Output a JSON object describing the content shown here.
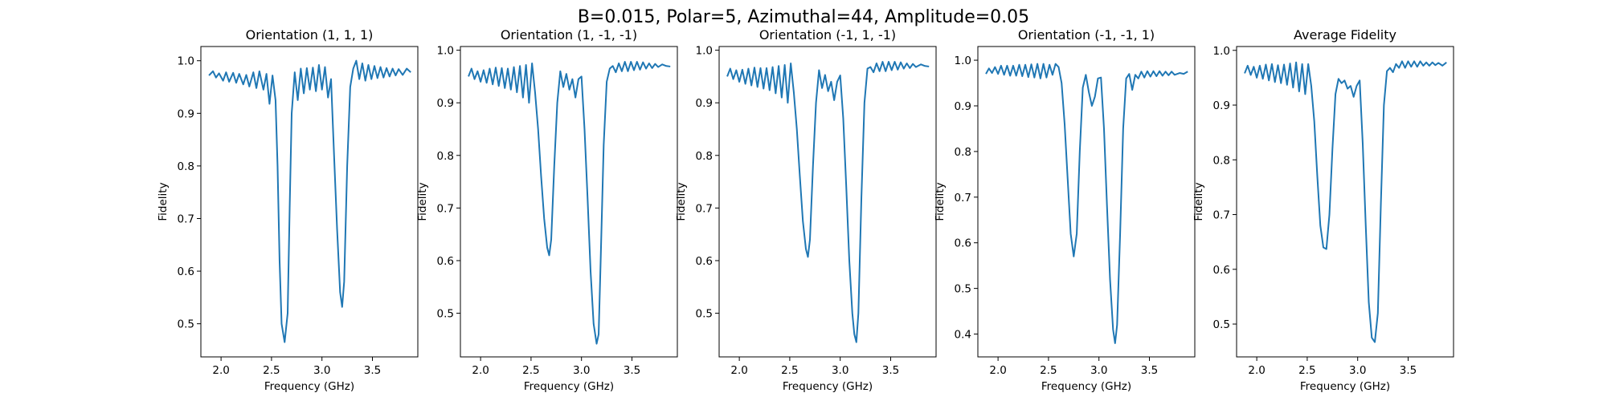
{
  "figure": {
    "suptitle": "B=0.015, Polar=5, Azimuthal=44, Amplitude=0.05"
  },
  "chart_data": [
    {
      "type": "line",
      "title": "Orientation (1, 1, 1)",
      "xlabel": "Frequency (GHz)",
      "ylabel": "Fidelity",
      "xlim": [
        1.8,
        3.95
      ],
      "ylim": [
        0.437,
        1.027
      ],
      "xticks": [
        2.0,
        2.5,
        3.0,
        3.5
      ],
      "yticks": [
        0.5,
        0.6,
        0.7,
        0.8,
        0.9,
        1.0
      ],
      "xtick_labels": [
        "2.0",
        "2.5",
        "3.0",
        "3.5"
      ],
      "ytick_labels": [
        "0.5",
        "0.6",
        "0.7",
        "0.8",
        "0.9",
        "1.0"
      ],
      "grid": false,
      "color": "#1f77b4",
      "dips": [
        {
          "center": 2.63,
          "min": 0.465
        },
        {
          "center": 3.2,
          "min": 0.532
        }
      ],
      "series": [
        {
          "x": [
            1.88,
            1.92,
            1.95,
            1.98,
            2.02,
            2.05,
            2.08,
            2.12,
            2.15,
            2.18,
            2.22,
            2.25,
            2.28,
            2.32,
            2.35,
            2.38,
            2.42,
            2.45,
            2.48,
            2.51,
            2.54,
            2.56,
            2.58,
            2.6,
            2.63,
            2.66,
            2.68,
            2.7,
            2.73,
            2.76,
            2.79,
            2.82,
            2.85,
            2.88,
            2.91,
            2.94,
            2.97,
            3.0,
            3.03,
            3.06,
            3.09,
            3.12,
            3.15,
            3.18,
            3.2,
            3.22,
            3.25,
            3.28,
            3.31,
            3.34,
            3.37,
            3.4,
            3.43,
            3.46,
            3.49,
            3.52,
            3.55,
            3.58,
            3.61,
            3.64,
            3.67,
            3.7,
            3.73,
            3.76,
            3.8,
            3.84,
            3.88
          ],
          "y": [
            0.972,
            0.98,
            0.968,
            0.976,
            0.962,
            0.978,
            0.96,
            0.977,
            0.958,
            0.975,
            0.955,
            0.973,
            0.951,
            0.978,
            0.948,
            0.98,
            0.945,
            0.975,
            0.918,
            0.972,
            0.925,
            0.8,
            0.62,
            0.5,
            0.465,
            0.52,
            0.72,
            0.9,
            0.978,
            0.925,
            0.985,
            0.938,
            0.986,
            0.945,
            0.987,
            0.942,
            0.992,
            0.945,
            0.988,
            0.93,
            0.965,
            0.82,
            0.68,
            0.56,
            0.532,
            0.58,
            0.8,
            0.95,
            0.985,
            1.0,
            0.965,
            0.995,
            0.962,
            0.992,
            0.965,
            0.99,
            0.967,
            0.988,
            0.968,
            0.986,
            0.97,
            0.985,
            0.972,
            0.984,
            0.973,
            0.985,
            0.978
          ]
        }
      ]
    },
    {
      "type": "line",
      "title": "Orientation (1, -1, -1)",
      "xlabel": "Frequency (GHz)",
      "ylabel": "Fidelity",
      "xlim": [
        1.8,
        3.95
      ],
      "ylim": [
        0.417,
        1.007
      ],
      "xticks": [
        2.0,
        2.5,
        3.0,
        3.5
      ],
      "yticks": [
        0.5,
        0.6,
        0.7,
        0.8,
        0.9,
        1.0
      ],
      "xtick_labels": [
        "2.0",
        "2.5",
        "3.0",
        "3.5"
      ],
      "ytick_labels": [
        "0.5",
        "0.6",
        "0.7",
        "0.8",
        "0.9",
        "1.0"
      ],
      "grid": false,
      "color": "#1f77b4",
      "dips": [
        {
          "center": 2.68,
          "min": 0.61
        },
        {
          "center": 3.17,
          "min": 0.442
        }
      ],
      "series": [
        {
          "x": [
            1.88,
            1.91,
            1.94,
            1.97,
            2.0,
            2.03,
            2.06,
            2.09,
            2.12,
            2.15,
            2.18,
            2.21,
            2.24,
            2.27,
            2.3,
            2.33,
            2.36,
            2.39,
            2.42,
            2.45,
            2.48,
            2.51,
            2.54,
            2.57,
            2.6,
            2.63,
            2.66,
            2.68,
            2.7,
            2.73,
            2.76,
            2.79,
            2.82,
            2.85,
            2.88,
            2.91,
            2.94,
            2.97,
            3.0,
            3.03,
            3.06,
            3.09,
            3.12,
            3.15,
            3.17,
            3.19,
            3.22,
            3.25,
            3.28,
            3.31,
            3.34,
            3.37,
            3.4,
            3.43,
            3.46,
            3.49,
            3.52,
            3.55,
            3.58,
            3.61,
            3.64,
            3.67,
            3.7,
            3.73,
            3.76,
            3.8,
            3.84,
            3.88
          ],
          "y": [
            0.95,
            0.965,
            0.945,
            0.96,
            0.94,
            0.962,
            0.938,
            0.965,
            0.935,
            0.967,
            0.932,
            0.966,
            0.928,
            0.965,
            0.925,
            0.968,
            0.92,
            0.97,
            0.91,
            0.972,
            0.9,
            0.975,
            0.92,
            0.85,
            0.76,
            0.68,
            0.625,
            0.61,
            0.64,
            0.78,
            0.9,
            0.96,
            0.93,
            0.955,
            0.925,
            0.945,
            0.91,
            0.945,
            0.95,
            0.85,
            0.72,
            0.58,
            0.48,
            0.442,
            0.46,
            0.6,
            0.82,
            0.94,
            0.965,
            0.97,
            0.958,
            0.975,
            0.96,
            0.978,
            0.96,
            0.978,
            0.962,
            0.978,
            0.963,
            0.977,
            0.965,
            0.975,
            0.966,
            0.974,
            0.968,
            0.973,
            0.97,
            0.969
          ]
        }
      ]
    },
    {
      "type": "line",
      "title": "Orientation (-1, 1, -1)",
      "xlabel": "Frequency (GHz)",
      "ylabel": "Fidelity",
      "xlim": [
        1.8,
        3.95
      ],
      "ylim": [
        0.417,
        1.007
      ],
      "xticks": [
        2.0,
        2.5,
        3.0,
        3.5
      ],
      "yticks": [
        0.5,
        0.6,
        0.7,
        0.8,
        0.9,
        1.0
      ],
      "xtick_labels": [
        "2.0",
        "2.5",
        "3.0",
        "3.5"
      ],
      "ytick_labels": [
        "0.5",
        "0.6",
        "0.7",
        "0.8",
        "0.9",
        "1.0"
      ],
      "grid": false,
      "color": "#1f77b4",
      "dips": [
        {
          "center": 2.68,
          "min": 0.607
        },
        {
          "center": 3.16,
          "min": 0.445
        }
      ],
      "series": [
        {
          "x": [
            1.88,
            1.91,
            1.94,
            1.97,
            2.0,
            2.03,
            2.06,
            2.09,
            2.12,
            2.15,
            2.18,
            2.21,
            2.24,
            2.27,
            2.3,
            2.33,
            2.36,
            2.39,
            2.42,
            2.45,
            2.48,
            2.51,
            2.54,
            2.57,
            2.6,
            2.63,
            2.66,
            2.68,
            2.7,
            2.73,
            2.76,
            2.79,
            2.82,
            2.85,
            2.88,
            2.91,
            2.94,
            2.97,
            3.0,
            3.03,
            3.06,
            3.09,
            3.12,
            3.14,
            3.16,
            3.18,
            3.21,
            3.24,
            3.27,
            3.3,
            3.33,
            3.36,
            3.39,
            3.42,
            3.45,
            3.48,
            3.51,
            3.54,
            3.57,
            3.6,
            3.63,
            3.66,
            3.69,
            3.72,
            3.75,
            3.8,
            3.84,
            3.88
          ],
          "y": [
            0.95,
            0.965,
            0.945,
            0.962,
            0.94,
            0.963,
            0.936,
            0.965,
            0.933,
            0.967,
            0.93,
            0.966,
            0.927,
            0.966,
            0.924,
            0.968,
            0.918,
            0.97,
            0.91,
            0.972,
            0.9,
            0.975,
            0.92,
            0.85,
            0.76,
            0.675,
            0.622,
            0.607,
            0.64,
            0.78,
            0.9,
            0.962,
            0.928,
            0.953,
            0.922,
            0.94,
            0.905,
            0.94,
            0.952,
            0.87,
            0.74,
            0.6,
            0.5,
            0.46,
            0.445,
            0.5,
            0.72,
            0.9,
            0.965,
            0.968,
            0.958,
            0.975,
            0.96,
            0.978,
            0.96,
            0.978,
            0.962,
            0.978,
            0.963,
            0.977,
            0.965,
            0.975,
            0.966,
            0.974,
            0.968,
            0.973,
            0.97,
            0.969
          ]
        }
      ]
    },
    {
      "type": "line",
      "title": "Orientation (-1, -1, 1)",
      "xlabel": "Frequency (GHz)",
      "ylabel": "Fidelity",
      "xlim": [
        1.8,
        3.95
      ],
      "ylim": [
        0.35,
        1.03
      ],
      "xticks": [
        2.0,
        2.5,
        3.0,
        3.5
      ],
      "yticks": [
        0.4,
        0.5,
        0.6,
        0.7,
        0.8,
        0.9,
        1.0
      ],
      "xtick_labels": [
        "2.0",
        "2.5",
        "3.0",
        "3.5"
      ],
      "ytick_labels": [
        "0.4",
        "0.5",
        "0.6",
        "0.7",
        "0.8",
        "0.9",
        "1.0"
      ],
      "grid": false,
      "color": "#1f77b4",
      "dips": [
        {
          "center": 2.75,
          "min": 0.57
        },
        {
          "center": 3.16,
          "min": 0.38
        }
      ],
      "series": [
        {
          "x": [
            1.88,
            1.91,
            1.94,
            1.97,
            2.0,
            2.03,
            2.06,
            2.09,
            2.12,
            2.15,
            2.18,
            2.21,
            2.24,
            2.27,
            2.3,
            2.33,
            2.36,
            2.39,
            2.42,
            2.45,
            2.48,
            2.51,
            2.54,
            2.57,
            2.6,
            2.63,
            2.66,
            2.69,
            2.72,
            2.75,
            2.78,
            2.81,
            2.84,
            2.87,
            2.9,
            2.93,
            2.96,
            2.99,
            3.02,
            3.05,
            3.08,
            3.11,
            3.14,
            3.16,
            3.18,
            3.21,
            3.24,
            3.27,
            3.3,
            3.33,
            3.36,
            3.39,
            3.42,
            3.45,
            3.48,
            3.51,
            3.54,
            3.57,
            3.6,
            3.63,
            3.66,
            3.69,
            3.72,
            3.75,
            3.8,
            3.84,
            3.88
          ],
          "y": [
            0.97,
            0.982,
            0.972,
            0.985,
            0.97,
            0.988,
            0.968,
            0.988,
            0.966,
            0.988,
            0.966,
            0.99,
            0.965,
            0.99,
            0.963,
            0.991,
            0.962,
            0.992,
            0.96,
            0.992,
            0.962,
            0.99,
            0.968,
            0.992,
            0.985,
            0.95,
            0.86,
            0.74,
            0.62,
            0.57,
            0.62,
            0.8,
            0.94,
            0.968,
            0.93,
            0.9,
            0.92,
            0.96,
            0.962,
            0.85,
            0.68,
            0.52,
            0.41,
            0.38,
            0.42,
            0.62,
            0.85,
            0.96,
            0.97,
            0.935,
            0.968,
            0.96,
            0.975,
            0.962,
            0.976,
            0.964,
            0.976,
            0.965,
            0.976,
            0.966,
            0.975,
            0.967,
            0.975,
            0.968,
            0.972,
            0.97,
            0.975
          ]
        }
      ]
    },
    {
      "type": "line",
      "title": "Average Fidelity",
      "xlabel": "Frequency (GHz)",
      "ylabel": "Fidelity",
      "xlim": [
        1.8,
        3.95
      ],
      "ylim": [
        0.44,
        1.007
      ],
      "xticks": [
        2.0,
        2.5,
        3.0,
        3.5
      ],
      "yticks": [
        0.5,
        0.6,
        0.7,
        0.8,
        0.9,
        1.0
      ],
      "xtick_labels": [
        "2.0",
        "2.5",
        "3.0",
        "3.5"
      ],
      "ytick_labels": [
        "0.5",
        "0.6",
        "0.7",
        "0.8",
        "0.9",
        "1.0"
      ],
      "grid": false,
      "color": "#1f77b4",
      "dips": [
        {
          "center": 2.69,
          "min": 0.637
        },
        {
          "center": 3.17,
          "min": 0.467
        }
      ],
      "series": [
        {
          "x": [
            1.88,
            1.91,
            1.94,
            1.97,
            2.0,
            2.03,
            2.06,
            2.09,
            2.12,
            2.15,
            2.18,
            2.21,
            2.24,
            2.27,
            2.3,
            2.33,
            2.36,
            2.39,
            2.42,
            2.45,
            2.48,
            2.51,
            2.54,
            2.57,
            2.6,
            2.63,
            2.66,
            2.69,
            2.72,
            2.75,
            2.78,
            2.81,
            2.84,
            2.87,
            2.9,
            2.93,
            2.96,
            2.99,
            3.02,
            3.05,
            3.08,
            3.11,
            3.14,
            3.17,
            3.2,
            3.23,
            3.26,
            3.29,
            3.32,
            3.35,
            3.38,
            3.41,
            3.44,
            3.47,
            3.5,
            3.53,
            3.56,
            3.59,
            3.62,
            3.65,
            3.68,
            3.71,
            3.74,
            3.77,
            3.8,
            3.84,
            3.88
          ],
          "y": [
            0.958,
            0.972,
            0.955,
            0.97,
            0.95,
            0.972,
            0.948,
            0.974,
            0.945,
            0.975,
            0.942,
            0.973,
            0.94,
            0.974,
            0.937,
            0.976,
            0.932,
            0.978,
            0.925,
            0.975,
            0.92,
            0.975,
            0.935,
            0.87,
            0.77,
            0.68,
            0.64,
            0.637,
            0.7,
            0.82,
            0.92,
            0.948,
            0.94,
            0.945,
            0.93,
            0.935,
            0.915,
            0.935,
            0.945,
            0.83,
            0.68,
            0.54,
            0.475,
            0.467,
            0.52,
            0.72,
            0.9,
            0.962,
            0.968,
            0.96,
            0.975,
            0.968,
            0.98,
            0.968,
            0.98,
            0.97,
            0.98,
            0.97,
            0.98,
            0.972,
            0.978,
            0.972,
            0.978,
            0.973,
            0.977,
            0.972,
            0.978
          ]
        }
      ]
    }
  ]
}
